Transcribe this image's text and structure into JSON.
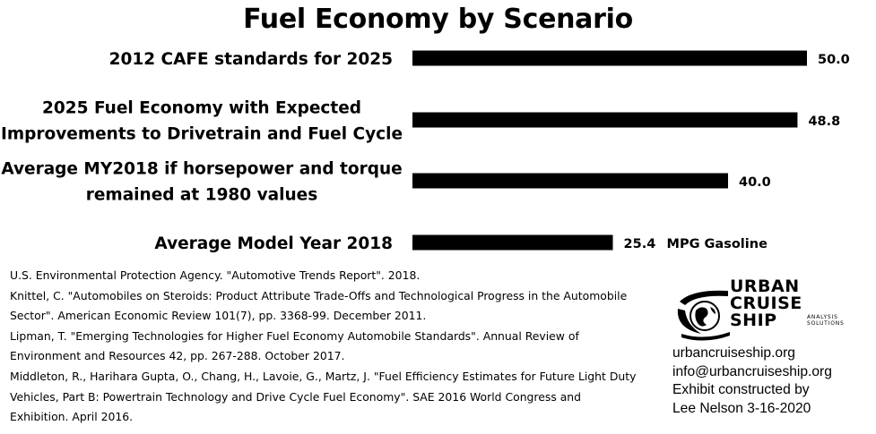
{
  "chart_data": {
    "type": "bar",
    "orientation": "horizontal",
    "title": "Fuel Economy by Scenario",
    "categories": [
      "2012 CAFE standards for 2025",
      "2025 Fuel Economy with Expected Improvements to Drivetrain and Fuel Cycle",
      "Average MY2018 if horsepower and torque remained at 1980 values",
      "Average Model Year 2018"
    ],
    "category_lines": [
      [
        "2012 CAFE standards for 2025"
      ],
      [
        "2025 Fuel Economy with Expected",
        "Improvements to Drivetrain and Fuel Cycle"
      ],
      [
        "Average MY2018 if horsepower and torque",
        "remained at 1980 values"
      ],
      [
        "Average Model Year 2018"
      ]
    ],
    "values": [
      50.0,
      48.8,
      40.0,
      25.4
    ],
    "value_labels": [
      "50.0",
      "48.8",
      "40.0",
      "25.4"
    ],
    "unit_annotation": "MPG Gasoline",
    "xlim": [
      0,
      50
    ],
    "grid": false,
    "bar_color": "#000000"
  },
  "references": [
    "U.S. Environmental Protection Agency. \"Automotive Trends Report\". 2018.",
    "Knittel, C. \"Automobiles on Steroids: Product Attribute Trade-Offs and Technological Progress in the Automobile Sector\". American Economic Review 101(7), pp. 3368-99. December 2011.",
    "Lipman, T. \"Emerging Technologies for Higher Fuel Economy Automobile Standards\". Annual Review of Environment and Resources 42, pp. 267-288. October 2017.",
    "Middleton, R., Harihara Gupta, O., Chang, H., Lavoie, G., Martz, J. \"Fuel Efficiency Estimates for Future Light Duty Vehicles, Part B: Powertrain Technology and Drive Cycle Fuel Economy\". SAE 2016 World Congress and Exhibition. April 2016."
  ],
  "logo": {
    "line1": "URBAN",
    "line2": "CRUISE",
    "line3": "SHIP",
    "sub": "ANALYSIS SOLUTIONS",
    "icon": "globe-ship-icon"
  },
  "contact": {
    "website": "urbancruiseship.org",
    "email": "info@urbancruiseship.org",
    "credit_line1": "Exhibit constructed by",
    "credit_line2": "Lee Nelson 3-16-2020"
  }
}
